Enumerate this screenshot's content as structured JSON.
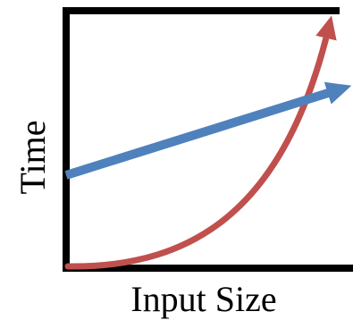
{
  "axes": {
    "x_label": "Input Size",
    "y_label": "Time",
    "color": "#000000"
  },
  "curves": [
    {
      "name": "exponential-growth",
      "color": "#c0504d"
    },
    {
      "name": "linear-growth",
      "color": "#4f81bd"
    }
  ]
}
